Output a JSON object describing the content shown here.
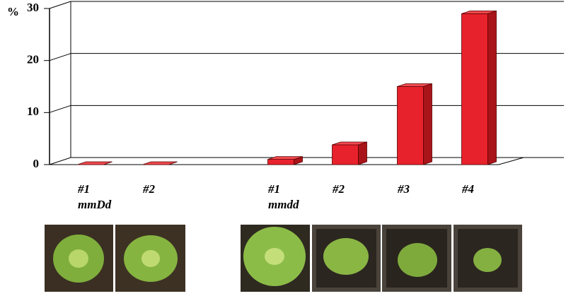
{
  "chart_data": {
    "type": "bar3d",
    "y_label": "%",
    "categories": [
      "#1",
      "#2",
      "#1",
      "#2",
      "#3",
      "#4"
    ],
    "group_labels": [
      "mmDd",
      null,
      "mmdd",
      null,
      null,
      null
    ],
    "values": [
      0,
      0,
      1,
      3.8,
      15,
      29
    ],
    "color": "#e8222c",
    "ylim": [
      0,
      30
    ],
    "yticks": [
      0,
      10,
      20,
      30
    ],
    "grid": true
  }
}
